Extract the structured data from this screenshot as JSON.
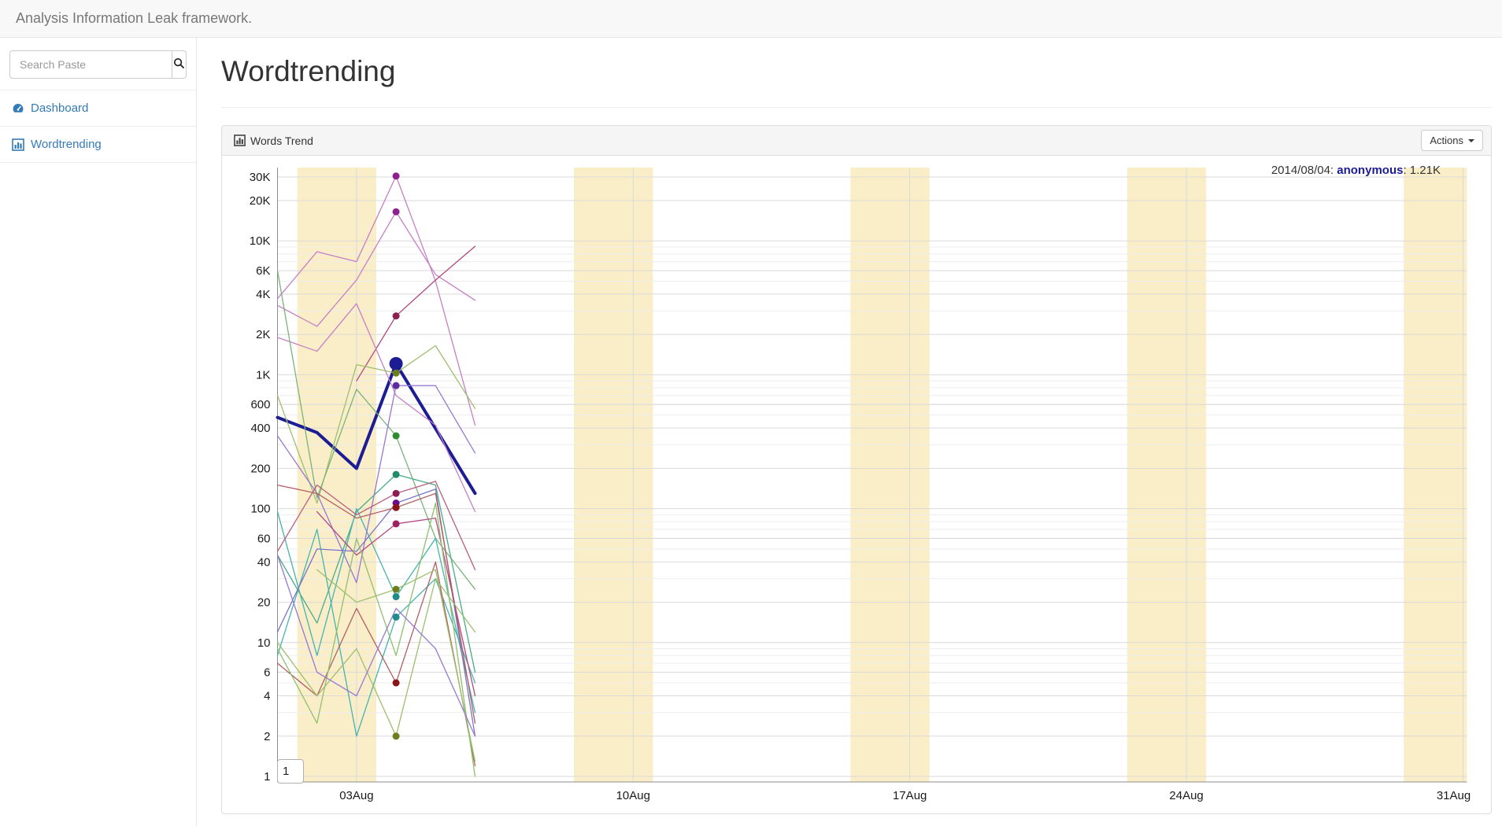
{
  "navbar": {
    "brand": "Analysis Information Leak framework."
  },
  "sidebar": {
    "search": {
      "placeholder": "Search Paste",
      "button_icon": "search-icon"
    },
    "items": [
      {
        "label": "Dashboard",
        "icon": "dashboard-icon"
      },
      {
        "label": "Wordtrending",
        "icon": "bar-chart-icon"
      }
    ]
  },
  "page": {
    "title": "Wordtrending"
  },
  "panel": {
    "title": "Words Trend",
    "icon": "bar-chart-icon",
    "actions_label": "Actions"
  },
  "chart": {
    "tooltip_date": "2014/08/04: ",
    "tooltip_series": "anonymous",
    "tooltip_value": ": 1.21K",
    "roller_value": "1",
    "accent_color": "#1c1c94"
  },
  "chart_data": {
    "type": "line",
    "title": "Words Trend",
    "x_axis": {
      "month": "Aug 2014",
      "tick_labels": [
        "03Aug",
        "10Aug",
        "17Aug",
        "24Aug",
        "31Aug"
      ],
      "tick_days": [
        3,
        10,
        17,
        24,
        31
      ],
      "domain_days": [
        1,
        31.1
      ]
    },
    "y_axis": {
      "scale": "log",
      "range": [
        1,
        30000
      ],
      "tick_labels": [
        "30K",
        "20K",
        "10K",
        "6K",
        "4K",
        "2K",
        "1K",
        "600",
        "400",
        "200",
        "100",
        "60",
        "40",
        "20",
        "10",
        "6",
        "4",
        "2",
        "1"
      ],
      "tick_values": [
        30000,
        20000,
        10000,
        6000,
        4000,
        2000,
        1000,
        600,
        400,
        200,
        100,
        60,
        40,
        20,
        10,
        6,
        4,
        2,
        1
      ]
    },
    "weekend_bands": {
      "color": "#faeec9",
      "saturdays": [
        2,
        9,
        16,
        23,
        30
      ]
    },
    "grid": {
      "major_color": "#d9d9d9",
      "minor_color": "#ededed",
      "axis_color": "#8c8c8c"
    },
    "highlight": {
      "series": "anonymous",
      "date": "2014/08/04",
      "value": 1210,
      "marker_day": 4
    },
    "series": [
      {
        "id": "anonymous",
        "color": "#1c1c94",
        "dot_color": "#1c1c94",
        "width": 4,
        "big_dot": true,
        "points": [
          [
            1,
            480
          ],
          [
            2,
            370
          ],
          [
            3,
            200
          ],
          [
            4,
            1210
          ],
          [
            6,
            130
          ]
        ]
      },
      {
        "id": "s1",
        "color": "#c57fc5",
        "dot_color": "#8e1f8e",
        "points": [
          [
            1,
            3300
          ],
          [
            2,
            2300
          ],
          [
            3,
            5100
          ],
          [
            4,
            16500
          ],
          [
            5,
            5600
          ],
          [
            6,
            3600
          ]
        ]
      },
      {
        "id": "s2",
        "color": "#c57fc5",
        "dot_color": "#8e1f8e",
        "points": [
          [
            1,
            3700
          ],
          [
            2,
            8300
          ],
          [
            3,
            7000
          ],
          [
            4,
            30500
          ],
          [
            5,
            5000
          ],
          [
            6,
            420
          ]
        ]
      },
      {
        "id": "s3",
        "color": "#b4487f",
        "dot_color": "#8b1f4f",
        "points": [
          [
            3,
            900
          ],
          [
            4,
            2750
          ],
          [
            5,
            5100
          ],
          [
            6,
            9100
          ]
        ]
      },
      {
        "id": "s4",
        "color": "#c57fc5",
        "dot_color": null,
        "points": [
          [
            1,
            1900
          ],
          [
            2,
            1500
          ],
          [
            3,
            3400
          ],
          [
            4,
            700
          ],
          [
            5,
            420
          ],
          [
            6,
            95
          ]
        ]
      },
      {
        "id": "s5",
        "color": "#9dbf6e",
        "dot_color": "#6f7d1f",
        "points": [
          [
            1,
            700
          ],
          [
            2,
            110
          ],
          [
            3,
            1190
          ],
          [
            4,
            1030
          ],
          [
            5,
            1650
          ],
          [
            6,
            560
          ]
        ]
      },
      {
        "id": "s6",
        "color": "#7ab37a",
        "dot_color": "#2f8b2f",
        "points": [
          [
            1,
            6000
          ],
          [
            2,
            120
          ],
          [
            3,
            780
          ],
          [
            4,
            350
          ],
          [
            5,
            60
          ],
          [
            6,
            25
          ]
        ]
      },
      {
        "id": "s7",
        "color": "#4aab8a",
        "dot_color": "#1f8b6b",
        "points": [
          [
            1,
            45
          ],
          [
            2,
            14
          ],
          [
            3,
            95
          ],
          [
            4,
            180
          ],
          [
            5,
            150
          ],
          [
            6,
            6
          ]
        ]
      },
      {
        "id": "s8",
        "color": "#45b3b0",
        "dot_color": "#1f8b8b",
        "points": [
          [
            1,
            95
          ],
          [
            2,
            8
          ],
          [
            3,
            100
          ],
          [
            4,
            22
          ],
          [
            5,
            60
          ],
          [
            6,
            3
          ]
        ]
      },
      {
        "id": "s9",
        "color": "#45b3b0",
        "dot_color": "#1f8b8b",
        "points": [
          [
            1,
            8
          ],
          [
            2,
            70
          ],
          [
            3,
            2
          ],
          [
            4,
            15.5
          ],
          [
            5,
            30
          ],
          [
            6,
            5
          ]
        ]
      },
      {
        "id": "s10",
        "color": "#9678d0",
        "dot_color": "#5a2da0",
        "points": [
          [
            1,
            350
          ],
          [
            2,
            130
          ],
          [
            3,
            28
          ],
          [
            4,
            830
          ],
          [
            5,
            830
          ],
          [
            6,
            260
          ]
        ]
      },
      {
        "id": "s11",
        "color": "#7b74c4",
        "dot_color": "#6a0d8a",
        "points": [
          [
            1,
            12
          ],
          [
            2,
            50
          ],
          [
            3,
            48
          ],
          [
            4,
            110
          ],
          [
            5,
            140
          ],
          [
            6,
            2
          ]
        ]
      },
      {
        "id": "s12",
        "color": "#b06060",
        "dot_color": "#8b1515",
        "points": [
          [
            1,
            150
          ],
          [
            2,
            130
          ],
          [
            3,
            85
          ],
          [
            4,
            102
          ],
          [
            5,
            130
          ],
          [
            6,
            2.5
          ]
        ]
      },
      {
        "id": "s13",
        "color": "#b4487f",
        "dot_color": "#a01f62",
        "points": [
          [
            2,
            95
          ],
          [
            3,
            45
          ],
          [
            4,
            77
          ],
          [
            5,
            85
          ],
          [
            6,
            4
          ]
        ]
      },
      {
        "id": "s14",
        "color": "#b06060",
        "dot_color": "#8b1515",
        "points": [
          [
            1,
            7
          ],
          [
            2,
            4
          ],
          [
            3,
            18
          ],
          [
            4,
            5
          ],
          [
            5,
            40
          ],
          [
            6,
            1.2
          ]
        ]
      },
      {
        "id": "s15",
        "color": "#9dbf6e",
        "dot_color": "#6f7d1f",
        "points": [
          [
            1,
            10
          ],
          [
            2,
            4
          ],
          [
            3,
            9
          ],
          [
            4,
            2
          ],
          [
            5,
            30
          ],
          [
            6,
            12
          ]
        ]
      },
      {
        "id": "s16",
        "color": "#9dbf6e",
        "dot_color": "#6f7d1f",
        "points": [
          [
            2,
            35
          ],
          [
            3,
            20
          ],
          [
            4,
            25
          ],
          [
            5,
            35
          ],
          [
            6,
            1.3
          ]
        ]
      },
      {
        "id": "s17",
        "color": "#b85f80",
        "dot_color": "#8b1f4f",
        "points": [
          [
            1,
            48
          ],
          [
            2,
            150
          ],
          [
            3,
            90
          ],
          [
            4,
            130
          ],
          [
            5,
            160
          ],
          [
            6,
            35
          ]
        ]
      },
      {
        "id": "s18",
        "color": "#8fbf6f",
        "dot_color": null,
        "points": [
          [
            1,
            9
          ],
          [
            2,
            2.5
          ],
          [
            3,
            60
          ],
          [
            4,
            8
          ],
          [
            5,
            110
          ],
          [
            6,
            1
          ]
        ]
      },
      {
        "id": "s19",
        "color": "#9678d0",
        "dot_color": null,
        "points": [
          [
            1,
            45
          ],
          [
            2,
            6
          ],
          [
            3,
            4
          ],
          [
            4,
            18
          ],
          [
            5,
            9
          ],
          [
            6,
            2
          ]
        ]
      }
    ]
  }
}
